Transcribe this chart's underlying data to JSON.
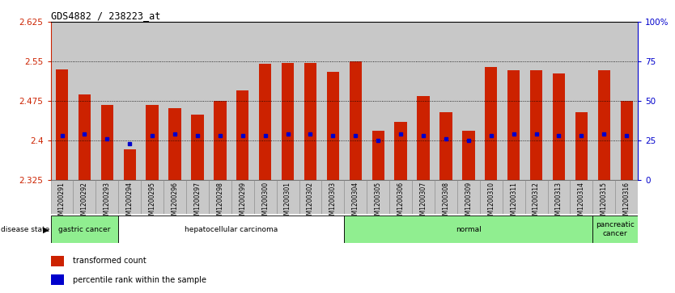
{
  "title": "GDS4882 / 238223_at",
  "samples": [
    "GSM1200291",
    "GSM1200292",
    "GSM1200293",
    "GSM1200294",
    "GSM1200295",
    "GSM1200296",
    "GSM1200297",
    "GSM1200298",
    "GSM1200299",
    "GSM1200300",
    "GSM1200301",
    "GSM1200302",
    "GSM1200303",
    "GSM1200304",
    "GSM1200305",
    "GSM1200306",
    "GSM1200307",
    "GSM1200308",
    "GSM1200309",
    "GSM1200310",
    "GSM1200311",
    "GSM1200312",
    "GSM1200313",
    "GSM1200314",
    "GSM1200315",
    "GSM1200316"
  ],
  "bar_tops": [
    2.535,
    2.487,
    2.468,
    2.383,
    2.468,
    2.462,
    2.45,
    2.475,
    2.495,
    2.545,
    2.548,
    2.548,
    2.53,
    2.551,
    2.418,
    2.436,
    2.484,
    2.454,
    2.418,
    2.539,
    2.533,
    2.533,
    2.527,
    2.454,
    2.533,
    2.475
  ],
  "pct_values": [
    28,
    29,
    26,
    23,
    28,
    29,
    28,
    28,
    28,
    28,
    29,
    29,
    28,
    28,
    25,
    29,
    28,
    26,
    25,
    28,
    29,
    29,
    28,
    28,
    29,
    28
  ],
  "ymin": 2.325,
  "ymax": 2.625,
  "yticks": [
    2.325,
    2.4,
    2.475,
    2.55,
    2.625
  ],
  "ytick_labels": [
    "2.325",
    "2.4",
    "2.475",
    "2.55",
    "2.625"
  ],
  "grid_lines": [
    2.4,
    2.475,
    2.55
  ],
  "right_ytick_pcts": [
    0,
    25,
    50,
    75,
    100
  ],
  "right_ytick_labels": [
    "0",
    "25",
    "50",
    "75",
    "100%"
  ],
  "bar_color": "#CC2200",
  "dot_color": "#0000CC",
  "col_bg_color": "#C8C8C8",
  "disease_groups": [
    {
      "label": "gastric cancer",
      "start": 0,
      "end": 3,
      "green": true
    },
    {
      "label": "hepatocellular carcinoma",
      "start": 3,
      "end": 13,
      "green": false
    },
    {
      "label": "normal",
      "start": 13,
      "end": 24,
      "green": true
    },
    {
      "label": "pancreatic\ncancer",
      "start": 24,
      "end": 26,
      "green": true
    }
  ],
  "green_color": "#90EE90",
  "white_color": "#FFFFFF",
  "legend_items": [
    {
      "color": "#CC2200",
      "label": "transformed count"
    },
    {
      "color": "#0000CC",
      "label": "percentile rank within the sample"
    }
  ]
}
